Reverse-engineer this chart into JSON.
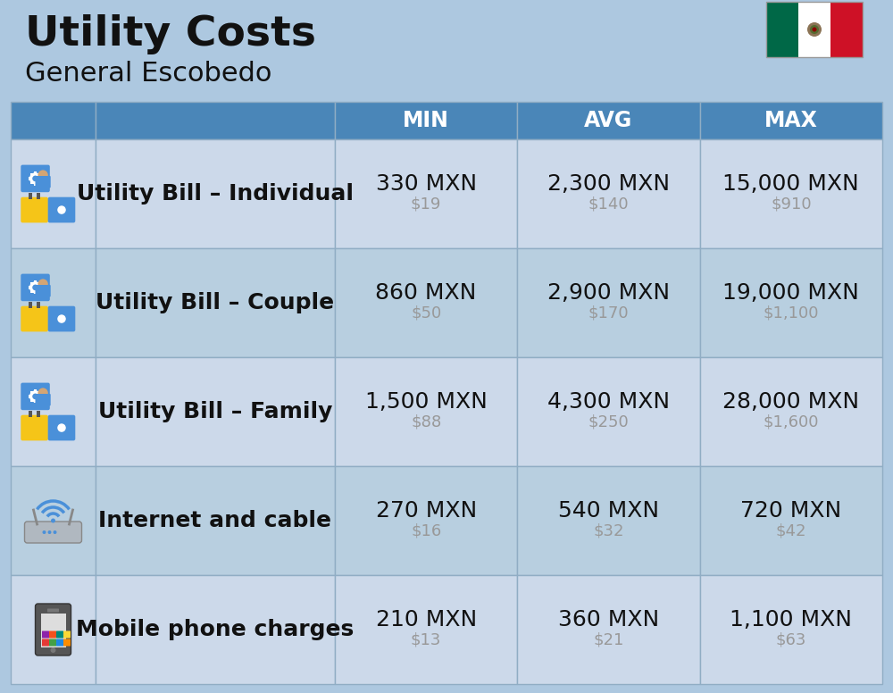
{
  "title": "Utility Costs",
  "subtitle": "General Escobedo",
  "background_color": "#adc8e0",
  "header_bg_color": "#4a86b8",
  "header_text_color": "#ffffff",
  "row_bg_color_light": "#ccd9ea",
  "row_bg_color_dark": "#b8cfe0",
  "col_header_labels": [
    "MIN",
    "AVG",
    "MAX"
  ],
  "rows": [
    {
      "label": "Utility Bill – Individual",
      "icon": "utility",
      "min_mxn": "330 MXN",
      "min_usd": "$19",
      "avg_mxn": "2,300 MXN",
      "avg_usd": "$140",
      "max_mxn": "15,000 MXN",
      "max_usd": "$910"
    },
    {
      "label": "Utility Bill – Couple",
      "icon": "utility",
      "min_mxn": "860 MXN",
      "min_usd": "$50",
      "avg_mxn": "2,900 MXN",
      "avg_usd": "$170",
      "max_mxn": "19,000 MXN",
      "max_usd": "$1,100"
    },
    {
      "label": "Utility Bill – Family",
      "icon": "utility",
      "min_mxn": "1,500 MXN",
      "min_usd": "$88",
      "avg_mxn": "4,300 MXN",
      "avg_usd": "$250",
      "max_mxn": "28,000 MXN",
      "max_usd": "$1,600"
    },
    {
      "label": "Internet and cable",
      "icon": "internet",
      "min_mxn": "270 MXN",
      "min_usd": "$16",
      "avg_mxn": "540 MXN",
      "avg_usd": "$32",
      "max_mxn": "720 MXN",
      "max_usd": "$42"
    },
    {
      "label": "Mobile phone charges",
      "icon": "mobile",
      "min_mxn": "210 MXN",
      "min_usd": "$13",
      "avg_mxn": "360 MXN",
      "avg_usd": "$21",
      "max_mxn": "1,100 MXN",
      "max_usd": "$63"
    }
  ],
  "title_fontsize": 34,
  "subtitle_fontsize": 22,
  "header_fontsize": 17,
  "cell_main_fontsize": 18,
  "cell_sub_fontsize": 13,
  "label_fontsize": 18
}
